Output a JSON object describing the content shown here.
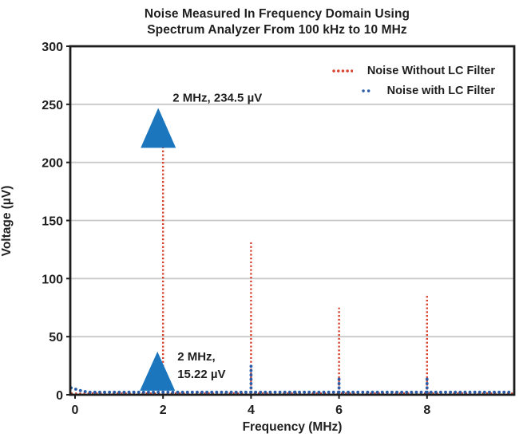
{
  "figure": {
    "title_line1": "Noise Measured In Frequency Domain Using",
    "title_line2": "Spectrum Analyzer From 100 kHz to 10 MHz"
  },
  "chart_data": {
    "type": "line",
    "title": "Noise Measured In Frequency Domain Using Spectrum Analyzer From 100 kHz to 10 MHz",
    "xlabel": "Frequency (MHz)",
    "ylabel": "Voltage (µV)",
    "xlim": [
      0,
      10
    ],
    "ylim": [
      0,
      300
    ],
    "xticks": [
      0,
      2,
      4,
      6,
      8
    ],
    "yticks": [
      0,
      50,
      100,
      150,
      200,
      250,
      300
    ],
    "grid": "horizontal-only",
    "gridline_color": "#c9c9c9",
    "axis_color": "#1c1c1c",
    "legend_position": "top-right-inside",
    "series": [
      {
        "name": "Noise Without LC Filter",
        "color": "#d8432f",
        "line_style": "dotted",
        "baseline_uV": 1.2,
        "peaks": [
          {
            "x_MHz": 2,
            "y_uV": 234.5
          },
          {
            "x_MHz": 4,
            "y_uV": 132
          },
          {
            "x_MHz": 6,
            "y_uV": 75
          },
          {
            "x_MHz": 8,
            "y_uV": 85
          }
        ]
      },
      {
        "name": "Noise with LC Filter",
        "color": "#2a5ca8",
        "line_style": "dotted",
        "baseline_uV": 2.2,
        "floor_start_uV": 6,
        "peaks": [
          {
            "x_MHz": 2,
            "y_uV": 15.22
          },
          {
            "x_MHz": 4,
            "y_uV": 26
          },
          {
            "x_MHz": 5,
            "y_uV": 4.5
          },
          {
            "x_MHz": 6,
            "y_uV": 14
          },
          {
            "x_MHz": 8,
            "y_uV": 17
          }
        ]
      }
    ],
    "annotations": [
      {
        "label": "2 MHz, 234.5 µV",
        "x_MHz": 2,
        "y_uV": 234.5,
        "marker": "triangle-up",
        "marker_color": "#1b76bd"
      },
      {
        "label": "2 MHz,\n15.22 µV",
        "x_MHz": 2,
        "y_uV": 15.22,
        "marker": "triangle-up",
        "marker_color": "#1b76bd"
      }
    ]
  }
}
